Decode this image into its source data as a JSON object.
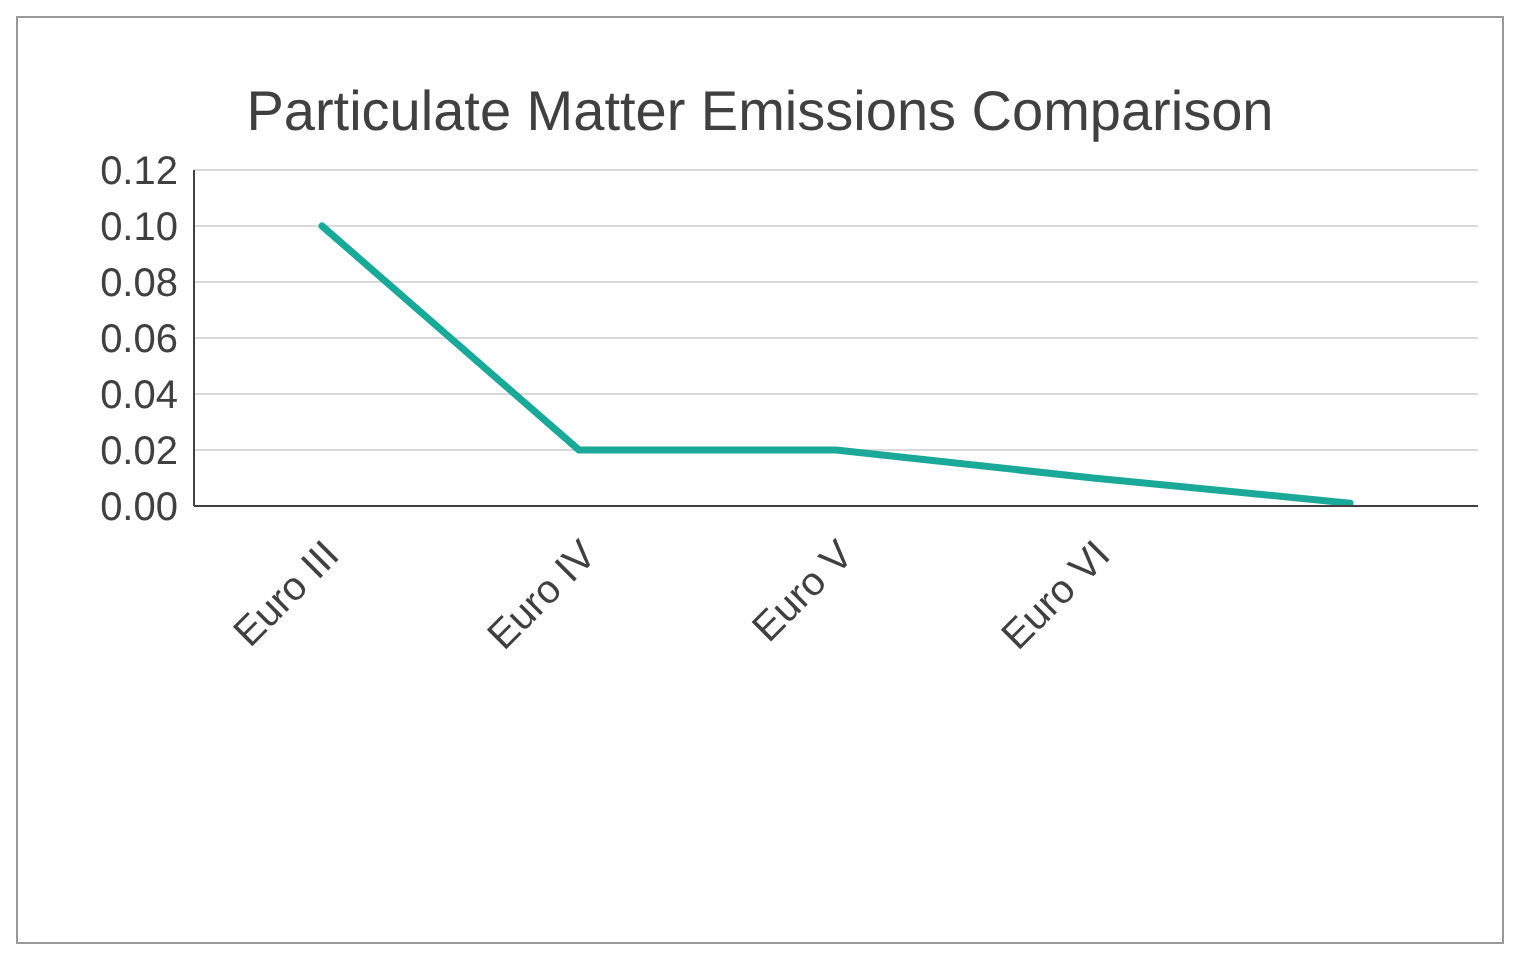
{
  "chart_data": {
    "type": "line",
    "title": "Particulate Matter Emissions Comparison",
    "categories": [
      "Euro III",
      "Euro IV",
      "Euro V",
      "Euro VI",
      null
    ],
    "series": [
      {
        "color": "#1aa899",
        "values": [
          0.1,
          0.02,
          0.02,
          0.01,
          0.001
        ]
      }
    ],
    "ylim": [
      0,
      0.12
    ],
    "yticks": [
      {
        "value": 0,
        "label": "0.00"
      },
      {
        "value": 0.02,
        "label": "0.02"
      },
      {
        "value": 0.04,
        "label": "0.04"
      },
      {
        "value": 0.06,
        "label": "0.06"
      },
      {
        "value": 0.08,
        "label": "0.08"
      },
      {
        "value": 0.1,
        "label": "0.10"
      },
      {
        "value": 0.12,
        "label": "0.12"
      }
    ],
    "grid": "y",
    "marker": "none",
    "line_style": "solid",
    "legend": false
  }
}
